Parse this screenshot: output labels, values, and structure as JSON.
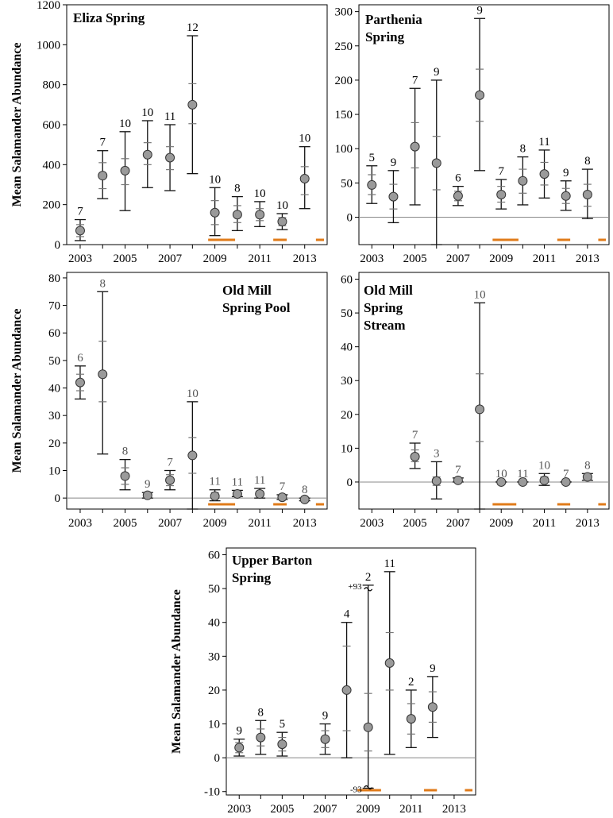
{
  "ylabel": "Mean Salamander Abundance",
  "colors": {
    "bar": "#e07b1a",
    "point": "#9a9a9a",
    "ci_outer": "#111111",
    "ci_inner": "#777777",
    "zero_line": "#888888"
  },
  "chart_data": [
    {
      "type": "scatter",
      "title_lines": [
        "Eliza Spring"
      ],
      "ylabel": "Mean Salamander Abundance",
      "ylim": [
        0,
        1200
      ],
      "yticks": [
        0,
        200,
        400,
        600,
        800,
        1000,
        1200
      ],
      "xlim": [
        2002.4,
        2014.0
      ],
      "xticks": [
        2003,
        2005,
        2007,
        2009,
        2011,
        2013
      ],
      "zero_line": false,
      "points": [
        {
          "x": 2003,
          "y": 70,
          "lo": 20,
          "hi": 125,
          "ilo": 40,
          "ihi": 100,
          "n": "7"
        },
        {
          "x": 2004,
          "y": 345,
          "lo": 230,
          "hi": 470,
          "ilo": 280,
          "ihi": 410,
          "n": "7"
        },
        {
          "x": 2005,
          "y": 370,
          "lo": 170,
          "hi": 565,
          "ilo": 300,
          "ihi": 430,
          "n": "10"
        },
        {
          "x": 2006,
          "y": 450,
          "lo": 285,
          "hi": 620,
          "ilo": 400,
          "ihi": 510,
          "n": "10"
        },
        {
          "x": 2007,
          "y": 435,
          "lo": 270,
          "hi": 600,
          "ilo": 375,
          "ihi": 490,
          "n": "11"
        },
        {
          "x": 2008,
          "y": 700,
          "lo": 355,
          "hi": 1045,
          "ilo": 605,
          "ihi": 805,
          "n": "12"
        },
        {
          "x": 2009,
          "y": 160,
          "lo": 45,
          "hi": 285,
          "ilo": 100,
          "ihi": 220,
          "n": "10"
        },
        {
          "x": 2010,
          "y": 150,
          "lo": 70,
          "hi": 240,
          "ilo": 110,
          "ihi": 195,
          "n": "8"
        },
        {
          "x": 2011,
          "y": 150,
          "lo": 90,
          "hi": 215,
          "ilo": 120,
          "ihi": 180,
          "n": "10"
        },
        {
          "x": 2012,
          "y": 115,
          "lo": 75,
          "hi": 155,
          "ilo": 95,
          "ihi": 135,
          "n": "10"
        },
        {
          "x": 2013,
          "y": 330,
          "lo": 180,
          "hi": 490,
          "ilo": 250,
          "ihi": 390,
          "n": "10"
        }
      ],
      "bars": [
        [
          2008.7,
          2009.9
        ],
        [
          2011.6,
          2012.2
        ],
        [
          2013.5,
          2014.0
        ]
      ]
    },
    {
      "type": "scatter",
      "title_lines": [
        "Parthenia",
        "Spring"
      ],
      "ylabel": "",
      "ylim": [
        -40,
        310
      ],
      "yticks": [
        0,
        50,
        100,
        150,
        200,
        250,
        300
      ],
      "xlim": [
        2002.4,
        2014.0
      ],
      "xticks": [
        2003,
        2005,
        2007,
        2009,
        2011,
        2013
      ],
      "zero_line": true,
      "points": [
        {
          "x": 2003,
          "y": 47,
          "lo": 20,
          "hi": 75,
          "ilo": 33,
          "ihi": 62,
          "n": "5"
        },
        {
          "x": 2004,
          "y": 30,
          "lo": -8,
          "hi": 68,
          "ilo": 12,
          "ihi": 48,
          "n": "9"
        },
        {
          "x": 2005,
          "y": 103,
          "lo": 18,
          "hi": 188,
          "ilo": 72,
          "ihi": 138,
          "n": "7"
        },
        {
          "x": 2006,
          "y": 79,
          "lo": -40,
          "hi": 200,
          "ilo": 40,
          "ihi": 118,
          "n": "9"
        },
        {
          "x": 2007,
          "y": 31,
          "lo": 17,
          "hi": 45,
          "ilo": 24,
          "ihi": 38,
          "n": "6"
        },
        {
          "x": 2008,
          "y": 178,
          "lo": 68,
          "hi": 290,
          "ilo": 140,
          "ihi": 216,
          "n": "9"
        },
        {
          "x": 2009,
          "y": 33,
          "lo": 12,
          "hi": 55,
          "ilo": 22,
          "ihi": 45,
          "n": "7"
        },
        {
          "x": 2010,
          "y": 53,
          "lo": 18,
          "hi": 88,
          "ilo": 35,
          "ihi": 70,
          "n": "8"
        },
        {
          "x": 2011,
          "y": 63,
          "lo": 28,
          "hi": 98,
          "ilo": 47,
          "ihi": 80,
          "n": "11"
        },
        {
          "x": 2012,
          "y": 31,
          "lo": 10,
          "hi": 53,
          "ilo": 20,
          "ihi": 42,
          "n": "9"
        },
        {
          "x": 2013,
          "y": 33,
          "lo": -2,
          "hi": 70,
          "ilo": 16,
          "ihi": 48,
          "n": "8"
        }
      ],
      "bars": [
        [
          2008.6,
          2009.8
        ],
        [
          2011.6,
          2012.2
        ],
        [
          2013.5,
          2014.0
        ]
      ]
    },
    {
      "type": "scatter",
      "title_lines": [
        "Old Mill",
        "Spring Pool"
      ],
      "ylabel": "Mean Salamander Abundance",
      "ylim": [
        -4,
        82
      ],
      "yticks": [
        0,
        10,
        20,
        30,
        40,
        50,
        60,
        70,
        80
      ],
      "xlim": [
        2002.4,
        2014.0
      ],
      "xticks": [
        2003,
        2005,
        2007,
        2009,
        2011,
        2013
      ],
      "zero_line": true,
      "points": [
        {
          "x": 2003,
          "y": 42,
          "lo": 36,
          "hi": 48,
          "ilo": 39,
          "ihi": 45,
          "n": "6"
        },
        {
          "x": 2004,
          "y": 45,
          "lo": 16,
          "hi": 75,
          "ilo": 35,
          "ihi": 57,
          "n": "8"
        },
        {
          "x": 2005,
          "y": 8,
          "lo": 3,
          "hi": 14,
          "ilo": 5,
          "ihi": 11,
          "n": "8"
        },
        {
          "x": 2006,
          "y": 1,
          "lo": 0,
          "hi": 2,
          "ilo": 0.5,
          "ihi": 1.5,
          "n": "9"
        },
        {
          "x": 2007,
          "y": 6.5,
          "lo": 3,
          "hi": 10,
          "ilo": 4.5,
          "ihi": 8.5,
          "n": "7"
        },
        {
          "x": 2008,
          "y": 15.5,
          "lo": -4,
          "hi": 35,
          "ilo": 9,
          "ihi": 22,
          "n": "10"
        },
        {
          "x": 2009,
          "y": 0.7,
          "lo": -1,
          "hi": 3,
          "ilo": 0,
          "ihi": 2,
          "n": "11"
        },
        {
          "x": 2010,
          "y": 1.5,
          "lo": 0.5,
          "hi": 2.8,
          "ilo": 1,
          "ihi": 2.2,
          "n": "11"
        },
        {
          "x": 2011,
          "y": 1.5,
          "lo": 0,
          "hi": 3.5,
          "ilo": 0.8,
          "ihi": 2.5,
          "n": "11"
        },
        {
          "x": 2012,
          "y": 0.3,
          "lo": -0.5,
          "hi": 1.2,
          "ilo": 0,
          "ihi": 0.7,
          "n": "7"
        },
        {
          "x": 2013,
          "y": -0.5,
          "lo": -1,
          "hi": 0,
          "ilo": -0.8,
          "ihi": -0.2,
          "n": "8"
        }
      ],
      "bars": [
        [
          2008.7,
          2009.9
        ],
        [
          2011.6,
          2012.2
        ],
        [
          2013.5,
          2014.0
        ]
      ]
    },
    {
      "type": "scatter",
      "title_lines": [
        "Old Mill",
        "Spring",
        "Stream"
      ],
      "ylabel": "",
      "ylim": [
        -8,
        62
      ],
      "yticks": [
        0,
        10,
        20,
        30,
        40,
        50,
        60
      ],
      "xlim": [
        2002.4,
        2014.0
      ],
      "xticks": [
        2003,
        2005,
        2007,
        2009,
        2011,
        2013
      ],
      "zero_line": true,
      "points": [
        {
          "x": 2005,
          "y": 7.5,
          "lo": 4,
          "hi": 11.5,
          "ilo": 6,
          "ihi": 9.5,
          "n": "7"
        },
        {
          "x": 2006,
          "y": 0.3,
          "lo": -5,
          "hi": 6,
          "ilo": -1,
          "ihi": 1.5,
          "n": "3"
        },
        {
          "x": 2007,
          "y": 0.5,
          "lo": 0,
          "hi": 1.2,
          "ilo": 0.2,
          "ihi": 0.9,
          "n": "7"
        },
        {
          "x": 2008,
          "y": 21.5,
          "lo": -8,
          "hi": 53,
          "ilo": 12,
          "ihi": 32,
          "n": "10"
        },
        {
          "x": 2009,
          "y": 0,
          "lo": 0,
          "hi": 0,
          "ilo": 0,
          "ihi": 0,
          "n": "10"
        },
        {
          "x": 2010,
          "y": 0,
          "lo": 0,
          "hi": 0,
          "ilo": 0,
          "ihi": 0,
          "n": "11"
        },
        {
          "x": 2011,
          "y": 0.5,
          "lo": -1,
          "hi": 2.5,
          "ilo": 0,
          "ihi": 1.5,
          "n": "10"
        },
        {
          "x": 2012,
          "y": 0,
          "lo": 0,
          "hi": 0,
          "ilo": 0,
          "ihi": 0,
          "n": "7"
        },
        {
          "x": 2013,
          "y": 1.5,
          "lo": 0.5,
          "hi": 2.5,
          "ilo": 1,
          "ihi": 2,
          "n": "8"
        }
      ],
      "bars": [
        [
          2008.6,
          2009.7
        ],
        [
          2011.6,
          2012.2
        ],
        [
          2013.5,
          2014.0
        ]
      ]
    },
    {
      "type": "scatter",
      "title_lines": [
        "Upper Barton",
        "Spring"
      ],
      "ylabel": "Mean Salamander Abundance",
      "ylim": [
        -11,
        62
      ],
      "yticks": [
        -10,
        0,
        10,
        20,
        30,
        40,
        50,
        60
      ],
      "xlim": [
        2002.4,
        2014.0
      ],
      "xticks": [
        2003,
        2005,
        2007,
        2009,
        2011,
        2013
      ],
      "zero_line": true,
      "points": [
        {
          "x": 2003,
          "y": 3,
          "lo": 0.5,
          "hi": 5.5,
          "ilo": 1.5,
          "ihi": 4.5,
          "n": "9"
        },
        {
          "x": 2004,
          "y": 6,
          "lo": 1,
          "hi": 11,
          "ilo": 3.5,
          "ihi": 8.5,
          "n": "8"
        },
        {
          "x": 2005,
          "y": 4,
          "lo": 0.5,
          "hi": 7.5,
          "ilo": 2,
          "ihi": 6,
          "n": "5"
        },
        {
          "x": 2007,
          "y": 5.5,
          "lo": 1,
          "hi": 10,
          "ilo": 3,
          "ihi": 8,
          "n": "9"
        },
        {
          "x": 2008,
          "y": 20,
          "lo": 0,
          "hi": 40,
          "ilo": 8,
          "ihi": 33,
          "n": "4"
        },
        {
          "x": 2009,
          "y": 9,
          "lo": -9,
          "hi": 51,
          "ilo": 2,
          "ihi": 19,
          "n": "2",
          "broken": true
        },
        {
          "x": 2010,
          "y": 28,
          "lo": 1,
          "hi": 55,
          "ilo": 20,
          "ihi": 37,
          "n": "11"
        },
        {
          "x": 2011,
          "y": 11.5,
          "lo": 3,
          "hi": 20,
          "ilo": 7,
          "ihi": 16,
          "n": "2"
        },
        {
          "x": 2012,
          "y": 15,
          "lo": 6,
          "hi": 24,
          "ilo": 10.5,
          "ihi": 19.5,
          "n": "9"
        }
      ],
      "bars": [
        [
          2008.5,
          2009.6
        ],
        [
          2011.6,
          2012.2
        ],
        [
          2013.5,
          2014.0
        ]
      ],
      "break_labels": {
        "top": "+93",
        "bottom": "-93"
      }
    }
  ]
}
